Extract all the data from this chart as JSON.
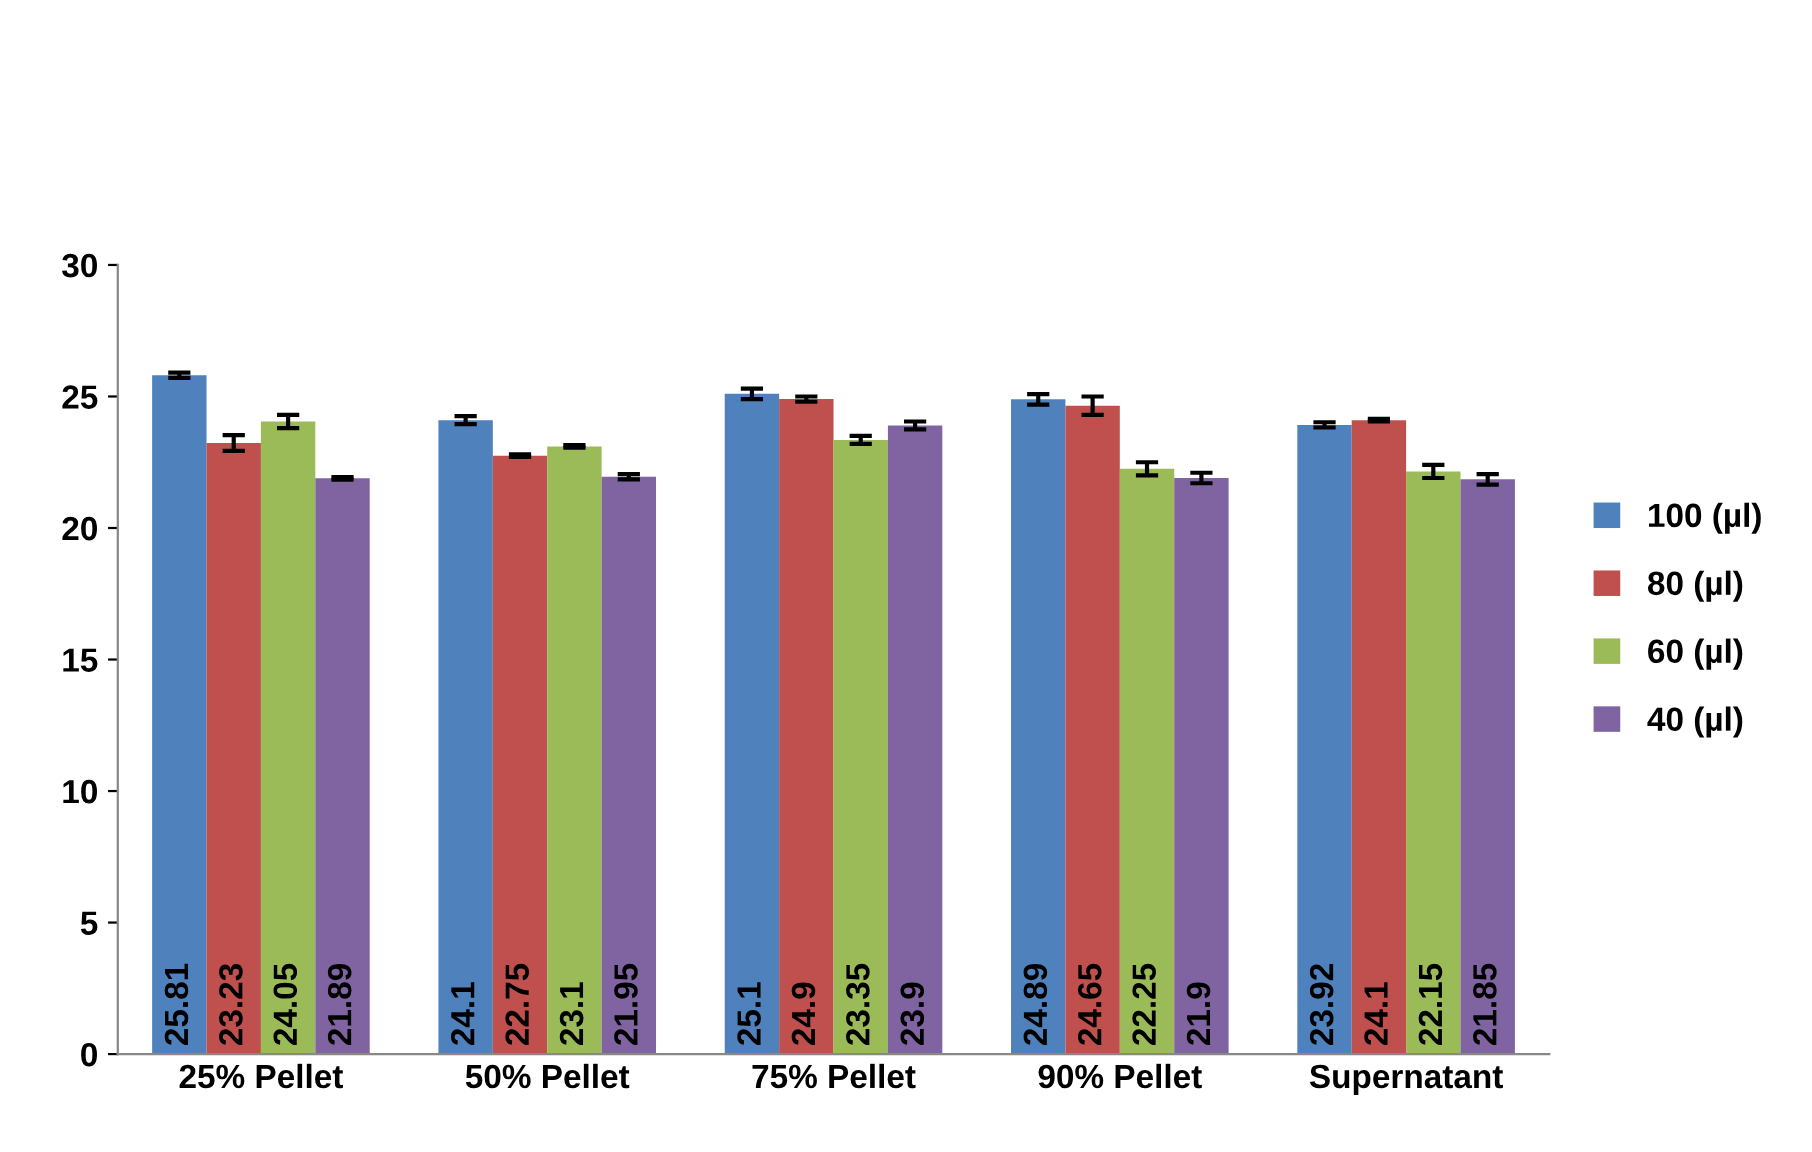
{
  "chart_data": {
    "type": "bar",
    "categories": [
      "25% Pellet",
      "50% Pellet",
      "75% Pellet",
      "90% Pellet",
      "Supernatant"
    ],
    "series": [
      {
        "name": "100 (µl)",
        "color": "#4f81bd",
        "values": [
          25.81,
          24.1,
          25.1,
          24.89,
          23.92
        ],
        "errors": [
          0.1,
          0.15,
          0.2,
          0.2,
          0.1
        ]
      },
      {
        "name": "80 (µl)",
        "color": "#c0504d",
        "values": [
          23.23,
          22.75,
          24.9,
          24.65,
          24.1
        ],
        "errors": [
          0.3,
          0.05,
          0.1,
          0.35,
          0.05
        ]
      },
      {
        "name": "60 (µl)",
        "color": "#9bbb59",
        "values": [
          24.05,
          23.1,
          23.35,
          22.25,
          22.15
        ],
        "errors": [
          0.25,
          0.05,
          0.15,
          0.25,
          0.25
        ]
      },
      {
        "name": "40 (µl)",
        "color": "#8064a2",
        "values": [
          21.89,
          21.95,
          23.9,
          21.9,
          21.85
        ],
        "errors": [
          0.05,
          0.1,
          0.15,
          0.2,
          0.2
        ]
      }
    ],
    "ylim": [
      0,
      30
    ],
    "yticks": [
      0,
      5,
      10,
      15,
      20,
      25,
      30
    ],
    "data_labels": true,
    "grid": false,
    "legend": "right"
  }
}
